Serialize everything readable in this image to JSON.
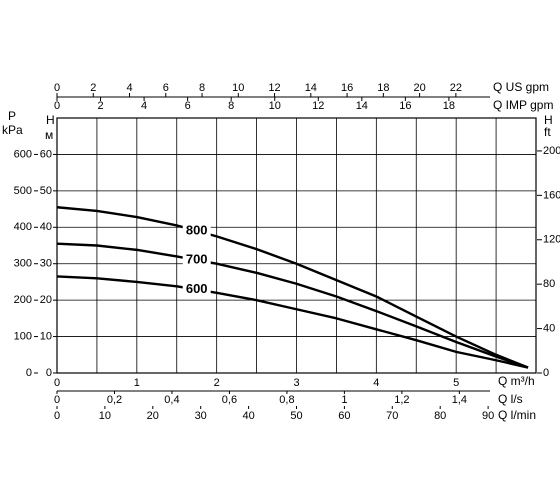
{
  "chart_data": {
    "type": "line",
    "x": [
      0,
      0.5,
      1,
      1.5,
      2,
      2.5,
      3,
      3.5,
      4,
      4.5,
      5,
      5.5,
      5.9
    ],
    "series": [
      {
        "name": "800",
        "color": "#000000",
        "values": [
          45.5,
          44.5,
          42.8,
          40.5,
          37.5,
          34,
          30,
          25.5,
          21,
          15.5,
          10,
          5,
          1.5
        ]
      },
      {
        "name": "700",
        "color": "#000000",
        "values": [
          35.5,
          35,
          33.8,
          32,
          30,
          27.5,
          24.5,
          21,
          17,
          12.8,
          8.5,
          4.5,
          1.5
        ]
      },
      {
        "name": "600",
        "color": "#000000",
        "values": [
          26.5,
          26,
          25,
          23.8,
          22,
          20,
          17.5,
          15,
          12,
          9,
          5.8,
          3.5,
          1.5
        ]
      }
    ],
    "xlabel": "Q m³/h",
    "xlim": [
      0,
      6
    ],
    "xticks": [
      0,
      1,
      2,
      3,
      4,
      5
    ],
    "xgrid": [
      0.5,
      1,
      1.5,
      2,
      2.5,
      3,
      3.5,
      4,
      4.5,
      5,
      5.5
    ],
    "ylabel": "H",
    "yunit": "м",
    "ylim": [
      0,
      70
    ],
    "yticks": [
      0,
      10,
      20,
      30,
      40,
      50,
      60
    ],
    "grid": true,
    "axes": [
      {
        "position": "left",
        "label": "P",
        "unit": "kPa",
        "lim": [
          0,
          700
        ],
        "ticks": [
          0,
          100,
          200,
          300,
          400,
          500,
          600
        ]
      },
      {
        "position": "right",
        "label": "H",
        "unit": "ft",
        "lim": [
          0,
          229.66
        ],
        "ticks": [
          0,
          40,
          80,
          120,
          160,
          200
        ]
      },
      {
        "position": "top",
        "label": "Q US gpm",
        "lim": [
          0,
          26.42
        ],
        "ticks": [
          0,
          2,
          4,
          6,
          8,
          10,
          12,
          14,
          16,
          18,
          20,
          22
        ]
      },
      {
        "position": "top",
        "label": "Q IMP gpm",
        "lim": [
          0,
          22
        ],
        "ticks": [
          0,
          2,
          4,
          6,
          8,
          10,
          12,
          14,
          16,
          18
        ]
      },
      {
        "position": "bottom",
        "label": "Q l/s",
        "lim": [
          0,
          1.6667
        ],
        "ticks": [
          0,
          {
            "value": 0.2,
            "label": "0,2"
          },
          {
            "value": 0.4,
            "label": "0,4"
          },
          {
            "value": 0.6,
            "label": "0,6"
          },
          {
            "value": 0.8,
            "label": "0,8"
          },
          1,
          {
            "value": 1.2,
            "label": "1,2"
          },
          {
            "value": 1.4,
            "label": "1,4"
          }
        ]
      },
      {
        "position": "bottom",
        "label": "Q l/min",
        "lim": [
          0,
          100
        ],
        "ticks": [
          0,
          10,
          20,
          30,
          40,
          50,
          60,
          70,
          80,
          90
        ]
      }
    ]
  }
}
